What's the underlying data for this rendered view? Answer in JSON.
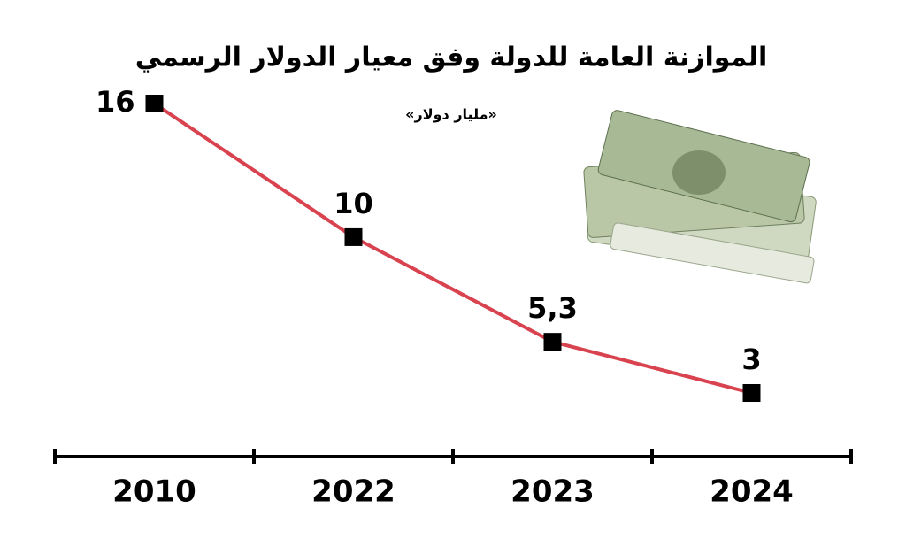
{
  "chart_data": {
    "type": "line",
    "title": "الموازنة العامة للدولة وفق معيار الدولار الرسمي",
    "subtitle": "«مليار دولار»",
    "categories": [
      "2010",
      "2022",
      "2023",
      "2024"
    ],
    "values": [
      16,
      10,
      5.3,
      3
    ],
    "value_labels": [
      "16",
      "10",
      "5,3",
      "3"
    ],
    "color": "#d8434f"
  }
}
